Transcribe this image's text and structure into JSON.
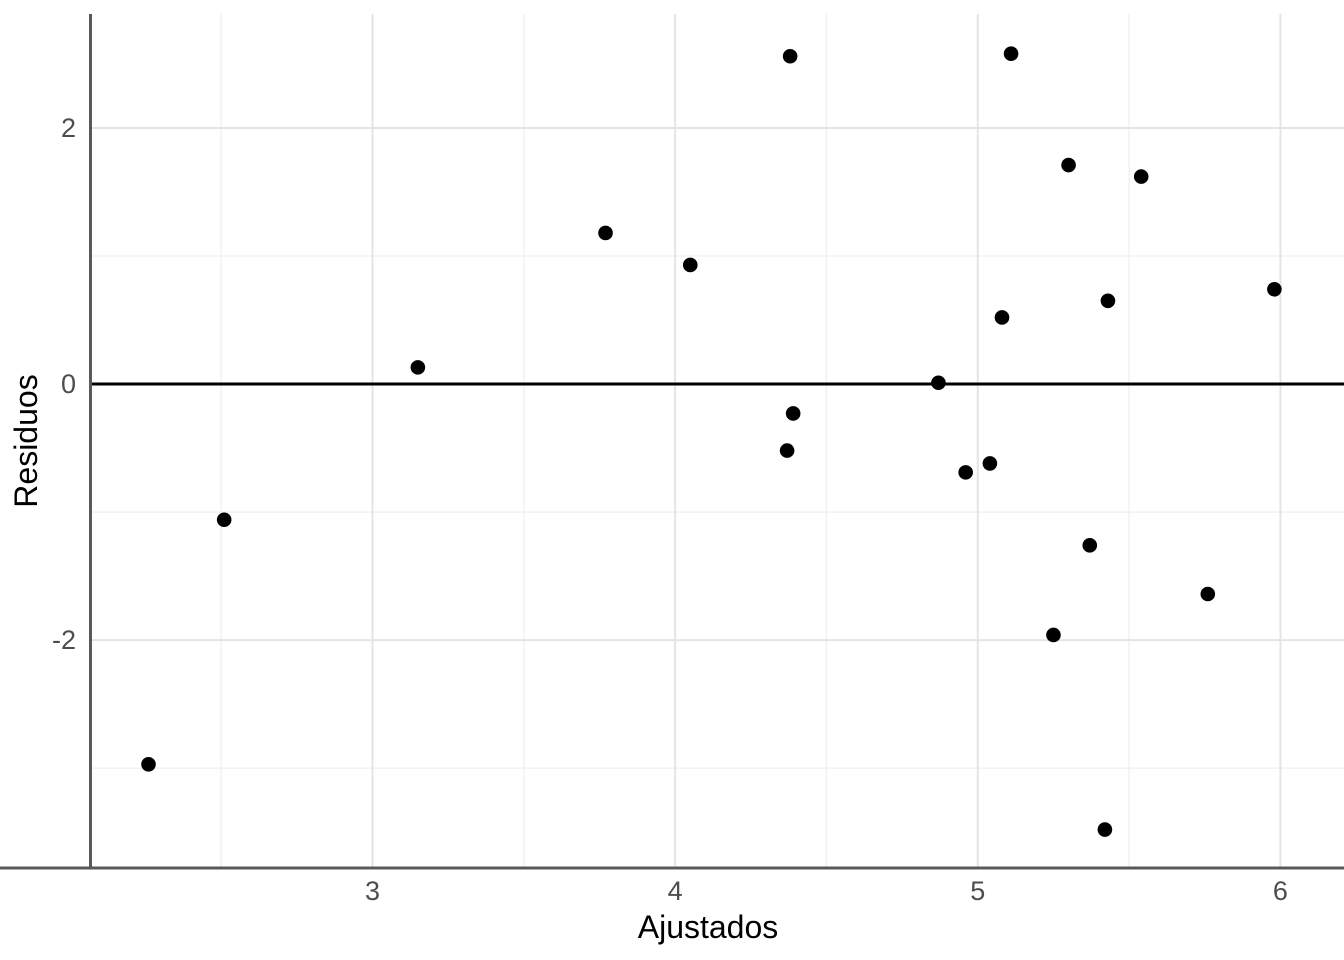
{
  "chart_data": {
    "type": "scatter",
    "title": "",
    "xlabel": "Ajustados",
    "ylabel": "Residuos",
    "xlim": [
      2.07,
      6.21
    ],
    "ylim": [
      -3.78,
      2.89
    ],
    "x_major_ticks": [
      3,
      4,
      5,
      6
    ],
    "x_minor_gridlines": [
      2.5,
      3.5,
      4.5,
      5.5
    ],
    "y_major_ticks": [
      2,
      0,
      -2
    ],
    "y_minor_gridlines": [
      1,
      -1,
      -3
    ],
    "grid": true,
    "legend": "none",
    "reference_line_y": 0,
    "points": [
      {
        "x": 2.26,
        "y": -2.97
      },
      {
        "x": 2.51,
        "y": -1.06
      },
      {
        "x": 3.15,
        "y": 0.13
      },
      {
        "x": 3.77,
        "y": 1.18
      },
      {
        "x": 4.05,
        "y": 0.93
      },
      {
        "x": 4.38,
        "y": 2.56
      },
      {
        "x": 4.39,
        "y": -0.23
      },
      {
        "x": 4.37,
        "y": -0.52
      },
      {
        "x": 4.87,
        "y": 0.01
      },
      {
        "x": 4.96,
        "y": -0.69
      },
      {
        "x": 5.04,
        "y": -0.62
      },
      {
        "x": 5.08,
        "y": 0.52
      },
      {
        "x": 5.11,
        "y": 2.58
      },
      {
        "x": 5.3,
        "y": 1.71
      },
      {
        "x": 5.54,
        "y": 1.62
      },
      {
        "x": 5.43,
        "y": 0.65
      },
      {
        "x": 5.98,
        "y": 0.74
      },
      {
        "x": 5.37,
        "y": -1.26
      },
      {
        "x": 5.76,
        "y": -1.64
      },
      {
        "x": 5.25,
        "y": -1.96
      },
      {
        "x": 5.42,
        "y": -3.48
      }
    ],
    "colors": {
      "point": "#000000",
      "reference_line": "#000000",
      "axis_line": "#595959",
      "grid_major": "#e4e4e4",
      "grid_minor": "#efefef",
      "tick_label": "#4d4d4d",
      "axis_title": "#000000",
      "background": "#ffffff"
    }
  }
}
